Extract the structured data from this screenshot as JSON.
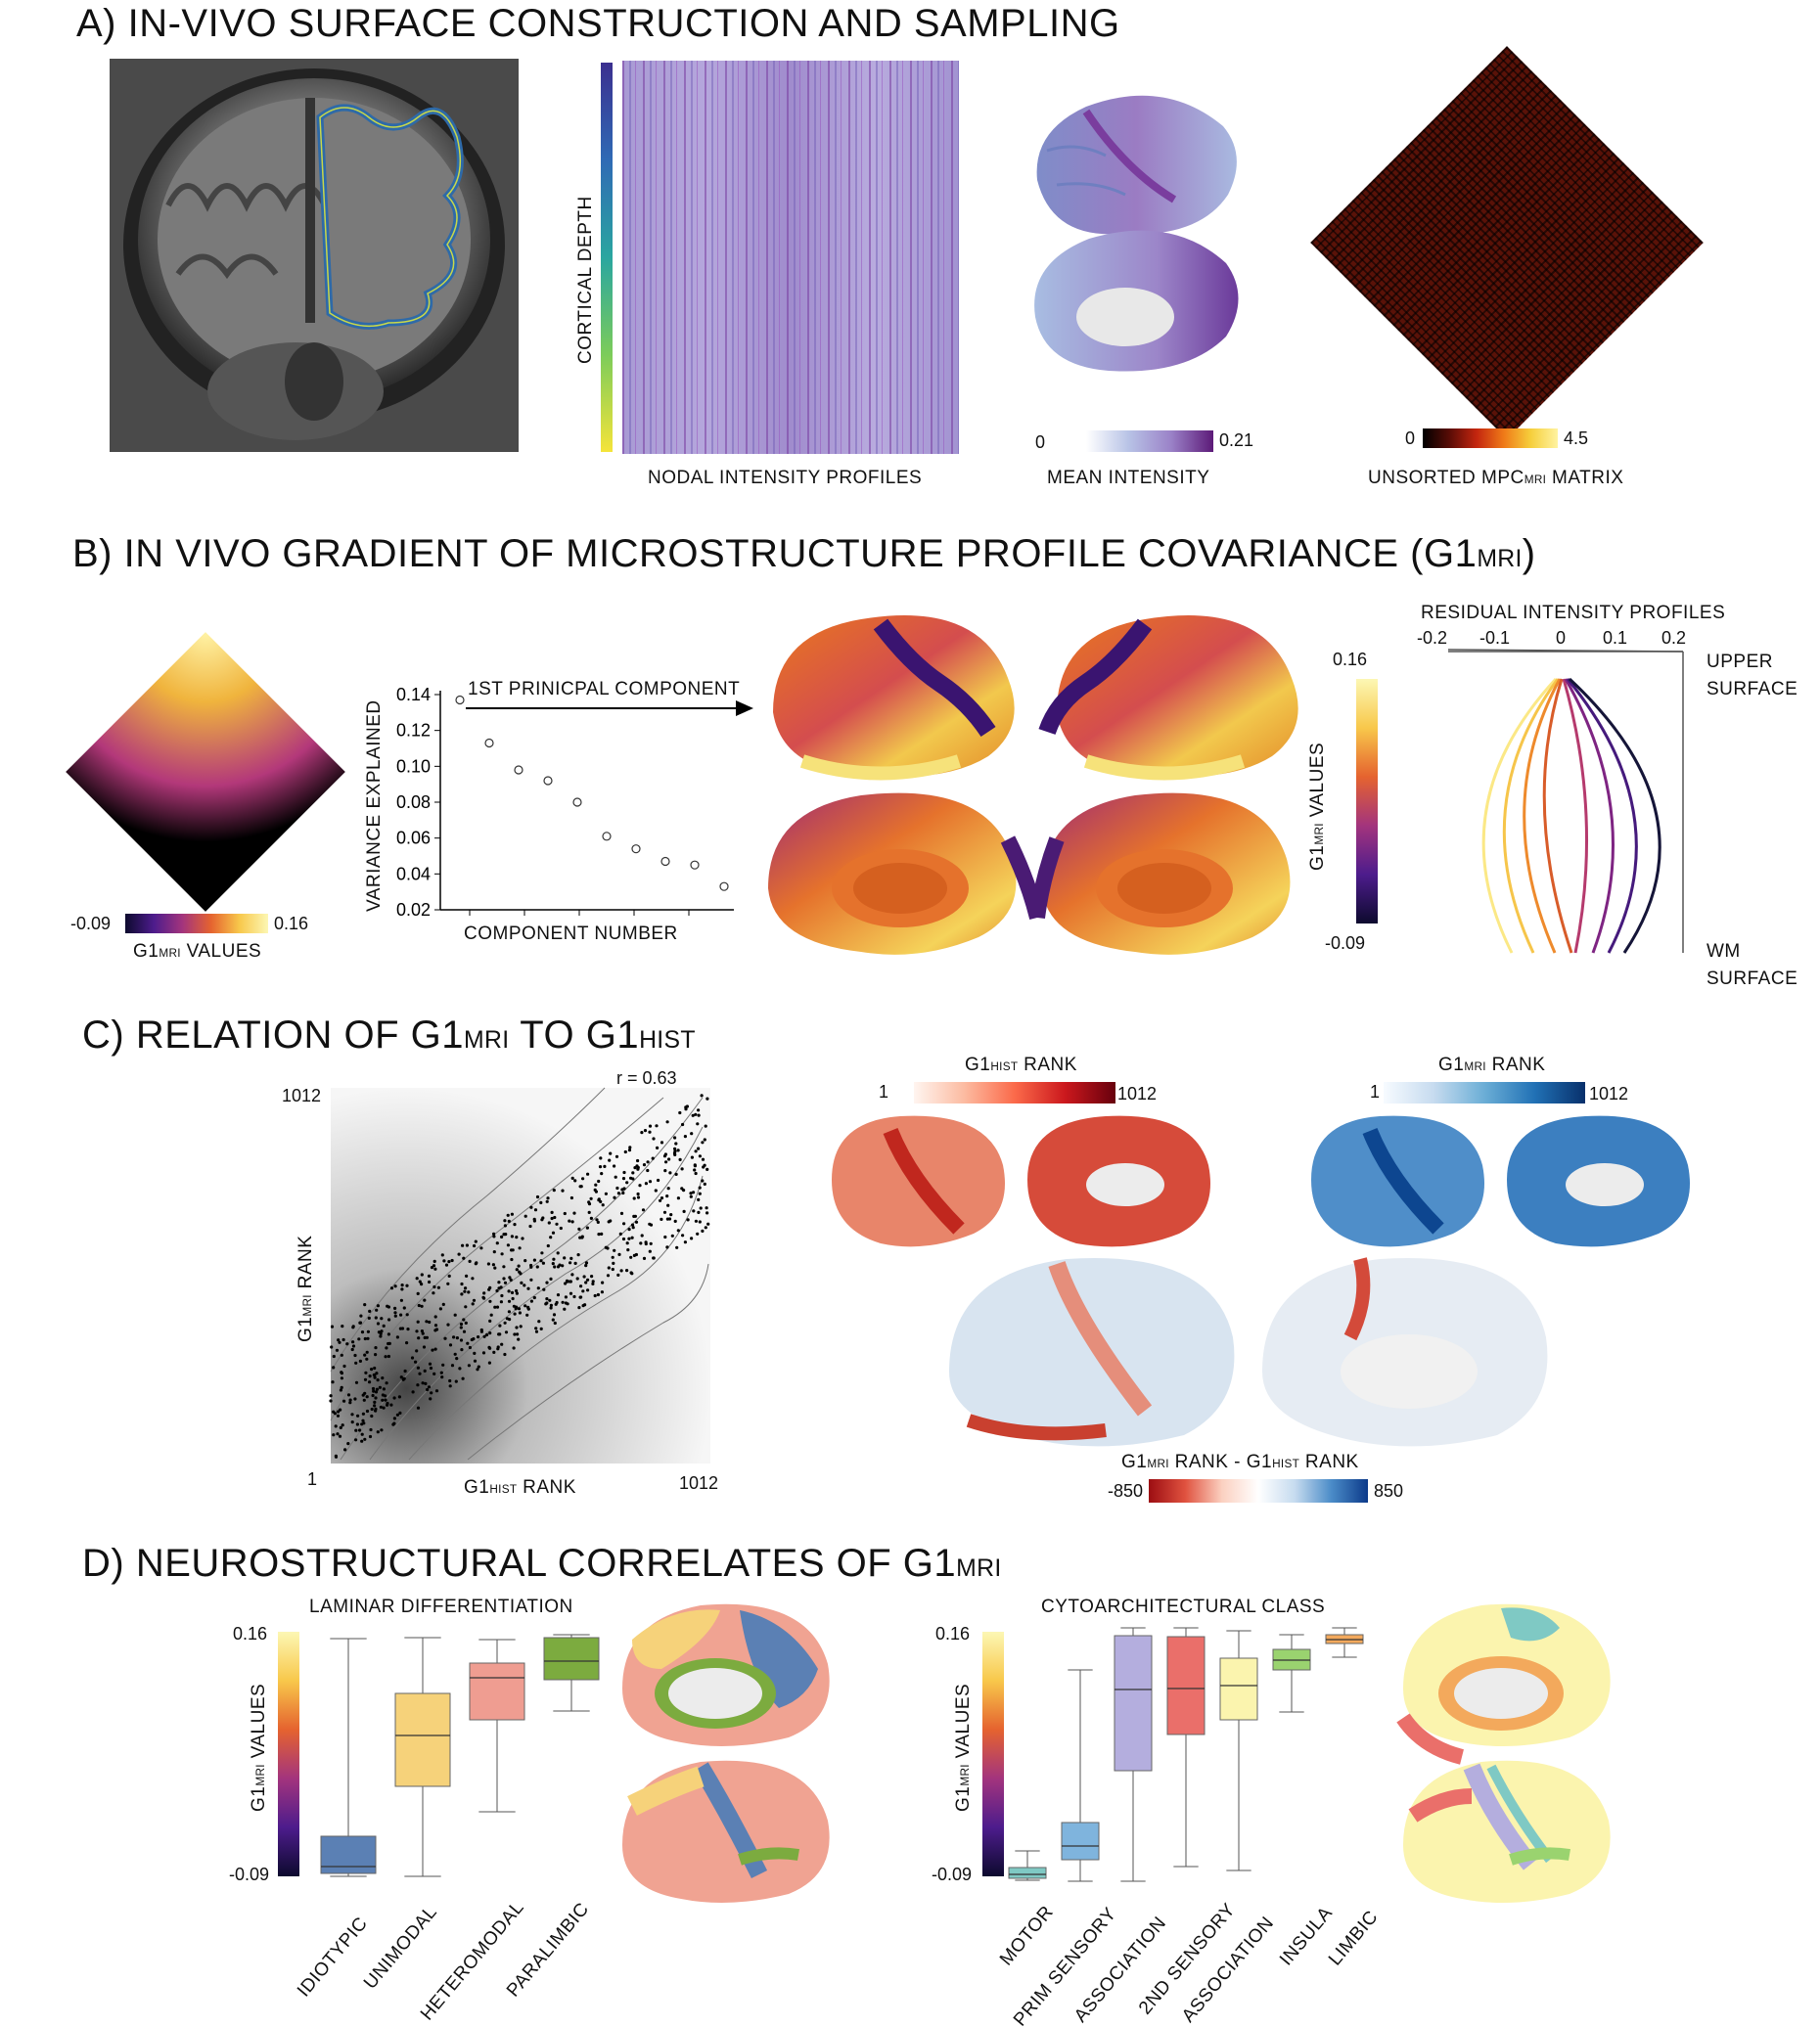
{
  "panel_a": {
    "title": "A) IN-VIVO SURFACE CONSTRUCTION AND SAMPLING",
    "depth_label": "CORTICAL DEPTH",
    "profiles_label": "NODAL INTENSITY PROFILES",
    "mean_intensity": {
      "min": "0",
      "max": "0.21",
      "label": "MEAN INTENSITY"
    },
    "mpc_matrix": {
      "min": "0",
      "max": "4.5",
      "label_pre": "UNSORTED MPC",
      "label_sub": "MRI",
      "label_post": " MATRIX"
    }
  },
  "panel_b": {
    "title_pre": "B) IN VIVO GRADIENT OF MICROSTRUCTURE PROFILE COVARIANCE (G1",
    "title_sub": "MRI",
    "title_post": ")",
    "matrix_colorbar": {
      "min": "-0.09",
      "max": "0.16",
      "label_pre": "G1",
      "label_sub": "MRI",
      "label_post": " VALUES"
    },
    "arrow_label": "1ST PRINICPAL COMPONENT",
    "scree_ylabel": "VARIANCE EXPLAINED",
    "scree_xlabel": "COMPONENT NUMBER",
    "surface_colorbar": {
      "max": "0.16",
      "min": "-0.09",
      "label_pre": "G1",
      "label_sub": "MRI",
      "label_post": " VALUES"
    },
    "profiles_title": "RESIDUAL INTENSITY PROFILES",
    "profiles_ticks": [
      "-0.2",
      "-0.1",
      "0",
      "0.1",
      "0.2"
    ],
    "upper_label": [
      "UPPER",
      "SURFACE"
    ],
    "wm_label": [
      "WM",
      "SURFACE"
    ]
  },
  "panel_c": {
    "title_a": "C) RELATION OF G1",
    "title_sub1": "MRI",
    "title_b": " TO G1",
    "title_sub2": "HIST",
    "r_label": "r = 0.63",
    "y_top": "1012",
    "y_bottom": "1",
    "x_right": "1012",
    "ylabel_pre": "G1",
    "ylabel_sub": "MRI",
    "ylabel_post": " RANK",
    "xlabel_pre": "G1",
    "xlabel_sub": "HIST",
    "xlabel_post": " RANK",
    "hist_bar": {
      "label_pre": "G1",
      "label_sub": "HIST",
      "label_post": " RANK",
      "min": "1",
      "max": "1012"
    },
    "mri_bar": {
      "label_pre": "G1",
      "label_sub": "MRI",
      "label_post": " RANK",
      "min": "1",
      "max": "1012"
    },
    "diff_bar": {
      "label": "G1MRI RANK - G1HIST RANK",
      "label_a": "G1",
      "sub_a": "MRI",
      "label_b": " RANK - G1",
      "sub_b": "HIST",
      "label_c": " RANK",
      "min": "-850",
      "max": "850"
    }
  },
  "panel_d": {
    "title_pre": "D) NEUROSTRUCTURAL CORRELATES OF G1",
    "title_sub": "MRI",
    "laminar": {
      "title": "LAMINAR DIFFERENTIATION",
      "ymax": "0.16",
      "ymin": "-0.09",
      "ylabel_pre": "G1",
      "ylabel_sub": "MRI",
      "ylabel_post": " VALUES",
      "categories": [
        "IDIOTYPIC",
        "UNIMODAL",
        "HETEROMODAL",
        "PARALIMBIC"
      ]
    },
    "cyto": {
      "title": "CYTOARCHITECTURAL CLASS",
      "ymax": "0.16",
      "ymin": "-0.09",
      "ylabel_pre": "G1",
      "ylabel_sub": "MRI",
      "ylabel_post": " VALUES",
      "categories": [
        "MOTOR",
        "PRIM SENSORY",
        "ASSOCIATION",
        "2ND SENSORY",
        "ASSOCIATION",
        "INSULA",
        "LIMBIC"
      ]
    }
  },
  "chart_data": [
    {
      "type": "scatter",
      "title": "",
      "xlabel": "COMPONENT NUMBER",
      "ylabel": "VARIANCE EXPLAINED",
      "y_ticks": [
        0.02,
        0.04,
        0.06,
        0.08,
        0.1,
        0.12,
        0.14
      ],
      "ylim": [
        0.02,
        0.14
      ],
      "x": [
        1,
        2,
        3,
        4,
        5,
        6,
        7,
        8,
        9,
        10
      ],
      "values": [
        0.137,
        0.113,
        0.098,
        0.092,
        0.08,
        0.061,
        0.054,
        0.047,
        0.045,
        0.033
      ]
    },
    {
      "type": "scatter",
      "title": "",
      "xlabel": "G1HIST RANK",
      "ylabel": "G1MRI RANK",
      "xlim": [
        1,
        1012
      ],
      "ylim": [
        1,
        1012
      ],
      "annotation": "r = 0.63"
    },
    {
      "type": "box",
      "title": "LAMINAR DIFFERENTIATION",
      "ylabel": "G1MRI VALUES",
      "ylim": [
        -0.09,
        0.16
      ],
      "categories": [
        "IDIOTYPIC",
        "UNIMODAL",
        "HETEROMODAL",
        "PARALIMBIC"
      ],
      "colors": [
        "#5b80b4",
        "#f6d27a",
        "#ef9d91",
        "#7cab3f"
      ],
      "boxes": [
        {
          "whisker_low": -0.088,
          "q1": -0.085,
          "median": -0.078,
          "q3": -0.047,
          "whisker_high": 0.155
        },
        {
          "whisker_low": -0.088,
          "q1": 0.004,
          "median": 0.056,
          "q3": 0.099,
          "whisker_high": 0.156
        },
        {
          "whisker_low": -0.022,
          "q1": 0.072,
          "median": 0.115,
          "q3": 0.13,
          "whisker_high": 0.154
        },
        {
          "whisker_low": 0.081,
          "q1": 0.113,
          "median": 0.132,
          "q3": 0.156,
          "whisker_high": 0.159
        }
      ]
    },
    {
      "type": "box",
      "title": "CYTOARCHITECTURAL CLASS",
      "ylabel": "G1MRI VALUES",
      "ylim": [
        -0.09,
        0.16
      ],
      "categories": [
        "MOTOR",
        "PRIM SENSORY",
        "ASSOCIATION",
        "2ND SENSORY",
        "ASSOCIATION",
        "INSULA",
        "LIMBIC"
      ],
      "colors": [
        "#7fc9c4",
        "#7fb4dd",
        "#b4aede",
        "#ea6f6a",
        "#fbf4ae",
        "#9ad36f",
        "#f3a95c"
      ],
      "boxes": [
        {
          "whisker_low": -0.092,
          "q1": -0.09,
          "median": -0.086,
          "q3": -0.079,
          "whisker_high": -0.062
        },
        {
          "whisker_low": -0.093,
          "q1": -0.071,
          "median": -0.057,
          "q3": -0.033,
          "whisker_high": 0.123
        },
        {
          "whisker_low": -0.093,
          "q1": 0.02,
          "median": 0.103,
          "q3": 0.158,
          "whisker_high": 0.166
        },
        {
          "whisker_low": -0.078,
          "q1": 0.057,
          "median": 0.104,
          "q3": 0.157,
          "whisker_high": 0.166
        },
        {
          "whisker_low": -0.082,
          "q1": 0.072,
          "median": 0.107,
          "q3": 0.135,
          "whisker_high": 0.163
        },
        {
          "whisker_low": 0.08,
          "q1": 0.123,
          "median": 0.133,
          "q3": 0.144,
          "whisker_high": 0.159
        },
        {
          "whisker_low": 0.136,
          "q1": 0.15,
          "median": 0.154,
          "q3": 0.159,
          "whisker_high": 0.166
        }
      ]
    }
  ]
}
